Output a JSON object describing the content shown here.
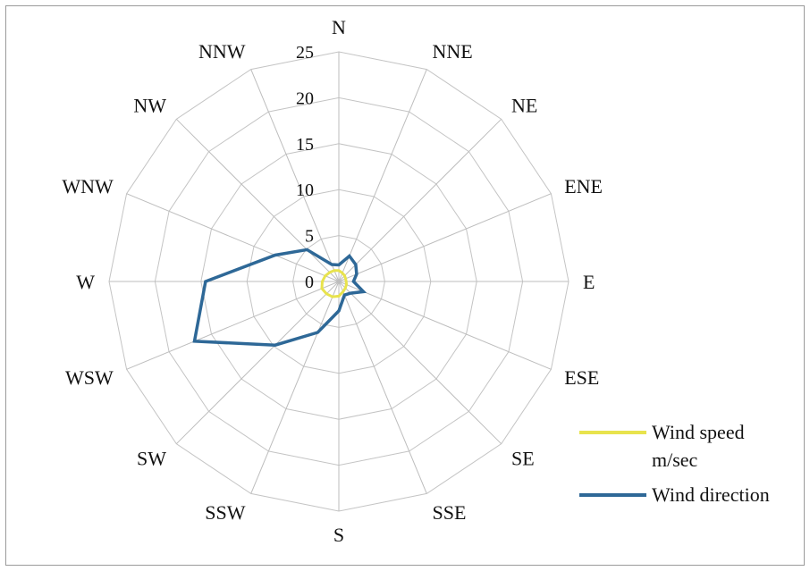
{
  "chart_data": {
    "type": "radar",
    "title": "",
    "directions": [
      "N",
      "NNE",
      "NE",
      "ENE",
      "E",
      "ESE",
      "SE",
      "SSE",
      "S",
      "SSW",
      "SW",
      "WSW",
      "W",
      "WNW",
      "NW",
      "NNW"
    ],
    "r_ticks": [
      "0",
      "5",
      "10",
      "15",
      "20",
      "25"
    ],
    "r_range": [
      0,
      25
    ],
    "grid": true,
    "legend_position": "right",
    "series": [
      {
        "name": "Wind speed m/sec",
        "color": "#e8e34d",
        "values": [
          1.2,
          1.0,
          0.9,
          0.8,
          0.8,
          0.9,
          1.0,
          1.2,
          1.6,
          1.8,
          1.9,
          2.0,
          1.8,
          1.6,
          1.4,
          1.3
        ]
      },
      {
        "name": "Wind direction",
        "color": "#2e6897",
        "values": [
          1.8,
          3.0,
          2.6,
          2.1,
          1.6,
          2.9,
          1.8,
          1.6,
          3.2,
          6.0,
          9.8,
          17.0,
          14.5,
          7.5,
          4.9,
          2.0
        ]
      }
    ]
  },
  "legend": {
    "items": [
      {
        "line1": "Wind speed",
        "line2": "m/sec"
      },
      {
        "line1": "Wind direction",
        "line2": ""
      }
    ]
  }
}
